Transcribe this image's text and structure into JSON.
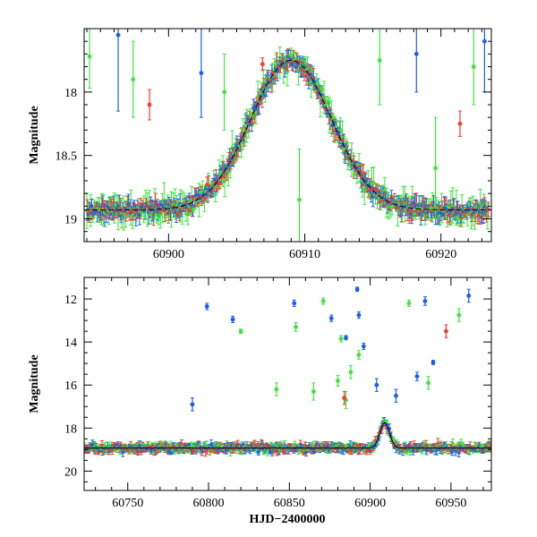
{
  "chart_data": [
    {
      "type": "scatter",
      "panel": "top",
      "title": "",
      "xlabel": "",
      "ylabel": "Magnitude",
      "xlim": [
        60893.8,
        60923.7
      ],
      "ylim": [
        19.18,
        17.5
      ],
      "y_inverted": true,
      "xticks": [
        60900,
        60910,
        60920
      ],
      "yticks": [
        18,
        18.5,
        19
      ],
      "xtick_labels": [
        "60900",
        "60910",
        "60920"
      ],
      "ytick_labels": [
        "18",
        "18.5",
        "19"
      ],
      "model_curve": {
        "name": "model",
        "peak_time": 60909.0,
        "peak_mag": 17.75,
        "base_mag": 18.93,
        "width": 4.2
      },
      "series": [
        {
          "name": "green",
          "color": "#3de63d"
        },
        {
          "name": "red",
          "color": "#ef3d2f"
        },
        {
          "name": "blue",
          "color": "#1a5ef0"
        }
      ],
      "outliers": [
        {
          "series": "green",
          "x": 60894.2,
          "y": 17.72,
          "err": 0.25
        },
        {
          "series": "blue",
          "x": 60896.3,
          "y": 17.55,
          "err": 0.6
        },
        {
          "series": "green",
          "x": 60897.4,
          "y": 17.9,
          "err": 0.3
        },
        {
          "series": "blue",
          "x": 60902.4,
          "y": 17.85,
          "err": 0.35
        },
        {
          "series": "red",
          "x": 60898.6,
          "y": 18.1,
          "err": 0.12
        },
        {
          "series": "green",
          "x": 60904.1,
          "y": 18.0,
          "err": 0.3
        },
        {
          "series": "red",
          "x": 60906.9,
          "y": 17.78,
          "err": 0.05
        },
        {
          "series": "green",
          "x": 60909.6,
          "y": 18.85,
          "err": 0.4
        },
        {
          "series": "green",
          "x": 60915.5,
          "y": 17.75,
          "err": 0.35
        },
        {
          "series": "blue",
          "x": 60918.2,
          "y": 17.7,
          "err": 0.3
        },
        {
          "series": "green",
          "x": 60922.4,
          "y": 17.8,
          "err": 0.3
        },
        {
          "series": "blue",
          "x": 60923.2,
          "y": 17.6,
          "err": 0.4
        },
        {
          "series": "red",
          "x": 60921.4,
          "y": 18.25,
          "err": 0.1
        },
        {
          "series": "green",
          "x": 60919.6,
          "y": 18.6,
          "err": 0.4
        }
      ]
    },
    {
      "type": "scatter",
      "panel": "bottom",
      "title": "",
      "xlabel": "HJD−2400000",
      "ylabel": "Magnitude",
      "xlim": [
        60723,
        60975
      ],
      "ylim": [
        20.9,
        11.0
      ],
      "y_inverted": true,
      "xticks": [
        60750,
        60800,
        60850,
        60900,
        60950
      ],
      "yticks": [
        12,
        14,
        16,
        18,
        20
      ],
      "xtick_labels": [
        "60750",
        "60800",
        "60850",
        "60900",
        "60950"
      ],
      "ytick_labels": [
        "12",
        "14",
        "16",
        "18",
        "20"
      ],
      "model_curve": {
        "name": "model",
        "peak_time": 60909.0,
        "peak_mag": 17.75,
        "base_mag": 18.93,
        "width": 4.2
      },
      "series": [
        {
          "name": "green",
          "color": "#3de63d"
        },
        {
          "name": "red",
          "color": "#ef3d2f"
        },
        {
          "name": "blue",
          "color": "#1a5ef0"
        }
      ],
      "outliers": [
        {
          "series": "blue",
          "x": 60799,
          "y": 12.35,
          "err": 0.15
        },
        {
          "series": "blue",
          "x": 60815,
          "y": 12.95,
          "err": 0.15
        },
        {
          "series": "green",
          "x": 60820,
          "y": 13.5,
          "err": 0.1
        },
        {
          "series": "blue",
          "x": 60853,
          "y": 12.2,
          "err": 0.15
        },
        {
          "series": "green",
          "x": 60854,
          "y": 13.3,
          "err": 0.2
        },
        {
          "series": "green",
          "x": 60871,
          "y": 12.1,
          "err": 0.15
        },
        {
          "series": "blue",
          "x": 60876,
          "y": 12.9,
          "err": 0.15
        },
        {
          "series": "green",
          "x": 60882,
          "y": 13.85,
          "err": 0.15
        },
        {
          "series": "blue",
          "x": 60885,
          "y": 13.8,
          "err": 0.1
        },
        {
          "series": "blue",
          "x": 60892,
          "y": 11.55,
          "err": 0.1
        },
        {
          "series": "blue",
          "x": 60893,
          "y": 12.75,
          "err": 0.15
        },
        {
          "series": "blue",
          "x": 60896,
          "y": 14.2,
          "err": 0.15
        },
        {
          "series": "green",
          "x": 60893,
          "y": 14.6,
          "err": 0.2
        },
        {
          "series": "green",
          "x": 60888,
          "y": 15.4,
          "err": 0.3
        },
        {
          "series": "green",
          "x": 60880,
          "y": 15.8,
          "err": 0.25
        },
        {
          "series": "blue",
          "x": 60904,
          "y": 16.0,
          "err": 0.3
        },
        {
          "series": "green",
          "x": 60924,
          "y": 12.2,
          "err": 0.15
        },
        {
          "series": "blue",
          "x": 60934,
          "y": 12.1,
          "err": 0.2
        },
        {
          "series": "red",
          "x": 60947,
          "y": 13.5,
          "err": 0.3
        },
        {
          "series": "green",
          "x": 60955,
          "y": 12.75,
          "err": 0.3
        },
        {
          "series": "blue",
          "x": 60961,
          "y": 11.85,
          "err": 0.3
        },
        {
          "series": "blue",
          "x": 60929,
          "y": 15.6,
          "err": 0.2
        },
        {
          "series": "green",
          "x": 60936,
          "y": 15.9,
          "err": 0.3
        },
        {
          "series": "blue",
          "x": 60939,
          "y": 14.95,
          "err": 0.1
        },
        {
          "series": "green",
          "x": 60885,
          "y": 16.7,
          "err": 0.4
        },
        {
          "series": "red",
          "x": 60884,
          "y": 16.6,
          "err": 0.3
        },
        {
          "series": "green",
          "x": 60842,
          "y": 16.2,
          "err": 0.3
        },
        {
          "series": "blue",
          "x": 60790,
          "y": 16.9,
          "err": 0.3
        },
        {
          "series": "green",
          "x": 60865,
          "y": 16.3,
          "err": 0.4
        },
        {
          "series": "blue",
          "x": 60916,
          "y": 16.5,
          "err": 0.3
        }
      ]
    }
  ]
}
